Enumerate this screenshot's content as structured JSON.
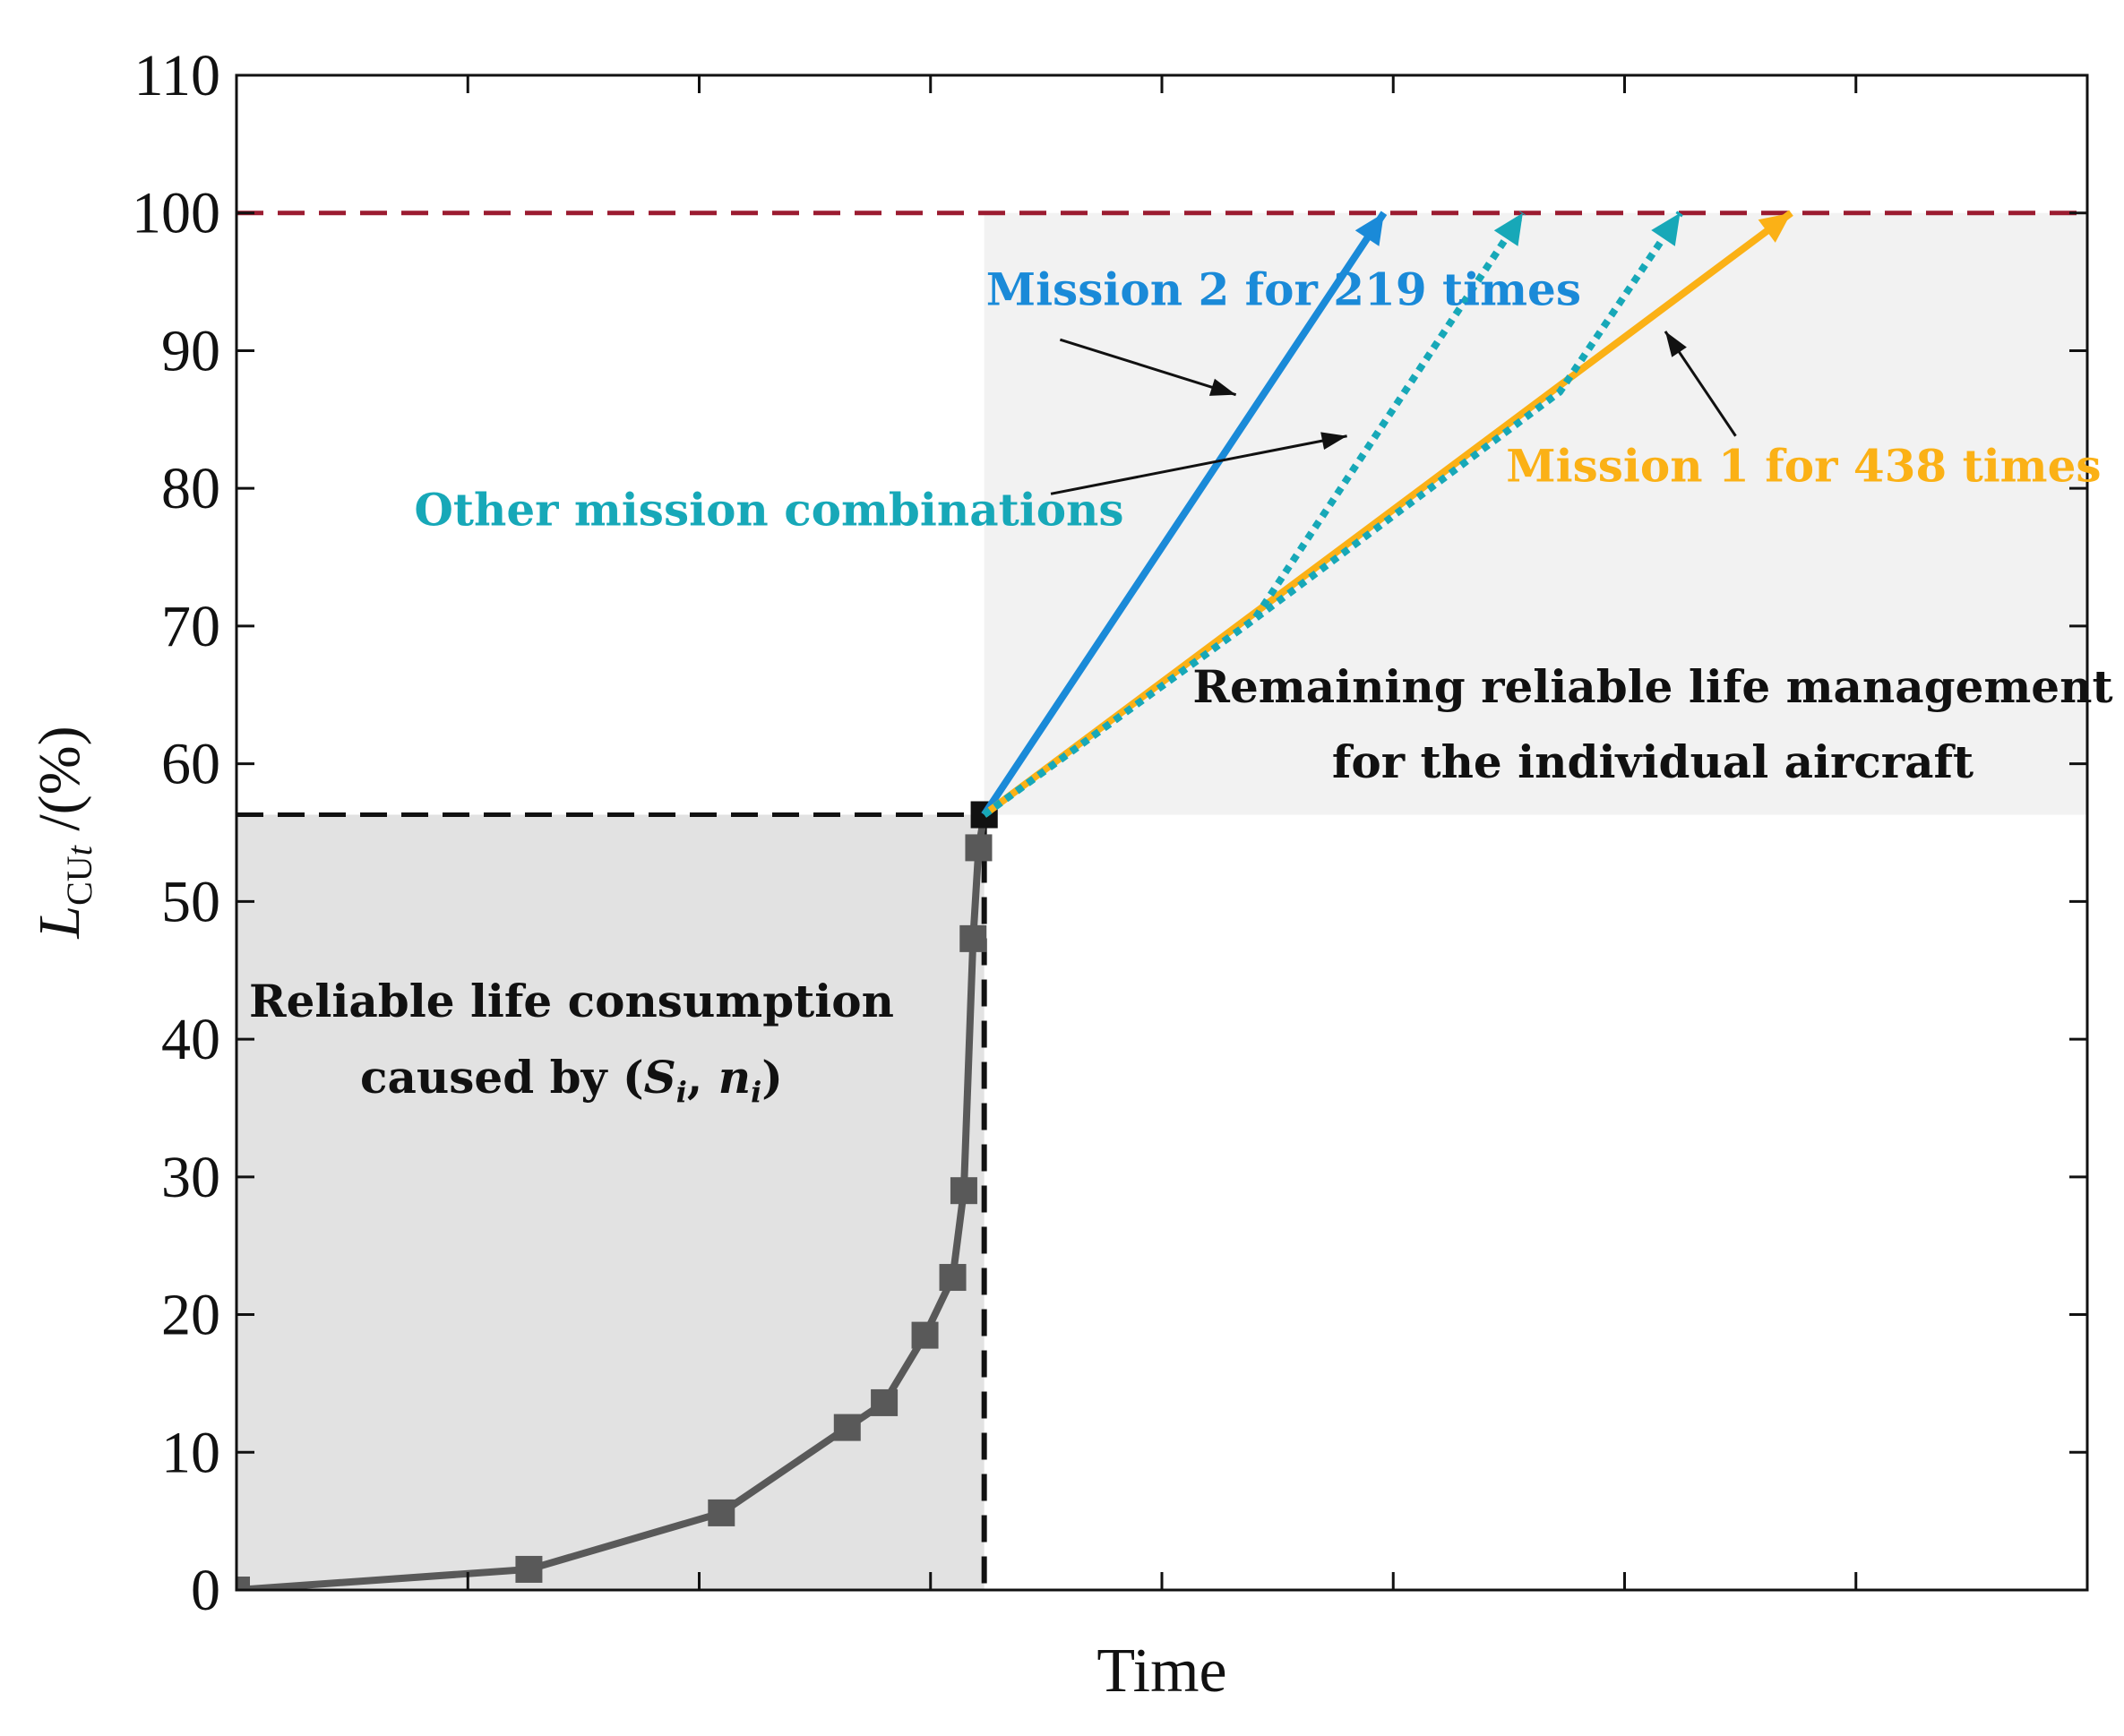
{
  "chart_data": {
    "type": "line",
    "title": "",
    "xlabel": "Time",
    "ylabel": {
      "main": "L",
      "subscript_upright": "CU",
      "subscript_italic": "t",
      "suffix": " /(%)"
    },
    "xlim": [
      0,
      100
    ],
    "ylim": [
      0,
      110
    ],
    "yticks": [
      0,
      10,
      20,
      30,
      40,
      50,
      60,
      70,
      80,
      90,
      100,
      110
    ],
    "xticks_unlabeled": [
      12.5,
      25,
      37.5,
      50,
      62.5,
      75,
      87.5
    ],
    "grid": false,
    "threshold": {
      "y": 100,
      "color": "#9b1b30",
      "style": "dashed"
    },
    "current_state": {
      "x": 40.4,
      "y": 56.3
    },
    "consumption_series": {
      "name": "Reliable life consumption",
      "color": "#595959",
      "marker": "square",
      "x": [
        0.0,
        15.8,
        26.2,
        33.0,
        35.0,
        37.2,
        38.7,
        39.3,
        39.8,
        40.1,
        40.4
      ],
      "y": [
        0.0,
        1.5,
        5.6,
        11.8,
        13.6,
        18.5,
        22.7,
        29.0,
        47.3,
        53.9,
        56.3
      ]
    },
    "projections": [
      {
        "name": "Mission 2",
        "color": "#1a8ad8",
        "style": "solid",
        "x": [
          40.4,
          62.0
        ],
        "y": [
          56.3,
          100
        ]
      },
      {
        "name": "Mission 1",
        "color": "#fbb116",
        "style": "solid",
        "x": [
          40.4,
          84.0
        ],
        "y": [
          56.3,
          100
        ]
      },
      {
        "name": "Other combination A",
        "color": "#17a8b8",
        "style": "dotted",
        "x": [
          40.4,
          55.0,
          69.5
        ],
        "y": [
          56.3,
          70.5,
          100
        ]
      },
      {
        "name": "Other combination B",
        "color": "#17a8b8",
        "style": "dotted",
        "x": [
          40.4,
          55.0,
          71.5,
          78.0
        ],
        "y": [
          56.3,
          70.5,
          87.0,
          100
        ]
      }
    ],
    "annotations": [
      {
        "text": "Mission 2 for 219 times",
        "color": "#1a8ad8",
        "text_at": [
          40.5,
          93.3
        ],
        "arrow_from": [
          44.5,
          90.8
        ],
        "arrow_to": [
          54.0,
          86.8
        ]
      },
      {
        "text": "Other mission combinations",
        "color": "#17a8b8",
        "text_at": [
          9.6,
          77.3
        ],
        "arrow_from": [
          44.0,
          79.6
        ],
        "arrow_to": [
          60.0,
          83.8
        ]
      },
      {
        "text": "Mission 1 for 438 times",
        "color": "#fbb116",
        "text_at": [
          68.6,
          80.5
        ],
        "arrow_from": [
          81.0,
          83.8
        ],
        "arrow_to": [
          77.2,
          91.4
        ]
      }
    ],
    "regions": [
      {
        "name": "consumed",
        "label_lines": [
          "Reliable life consumption",
          "caused by ("
        ],
        "color": "#e2e2e2"
      },
      {
        "name": "remaining",
        "label_lines": [
          "Remaining reliable life management",
          "for the individual aircraft"
        ],
        "color": "#f2f2f2"
      }
    ],
    "consumed_label_symbols": {
      "s": "S",
      "n": "n",
      "i": "i",
      "comma": ", ",
      "close": ")"
    }
  }
}
